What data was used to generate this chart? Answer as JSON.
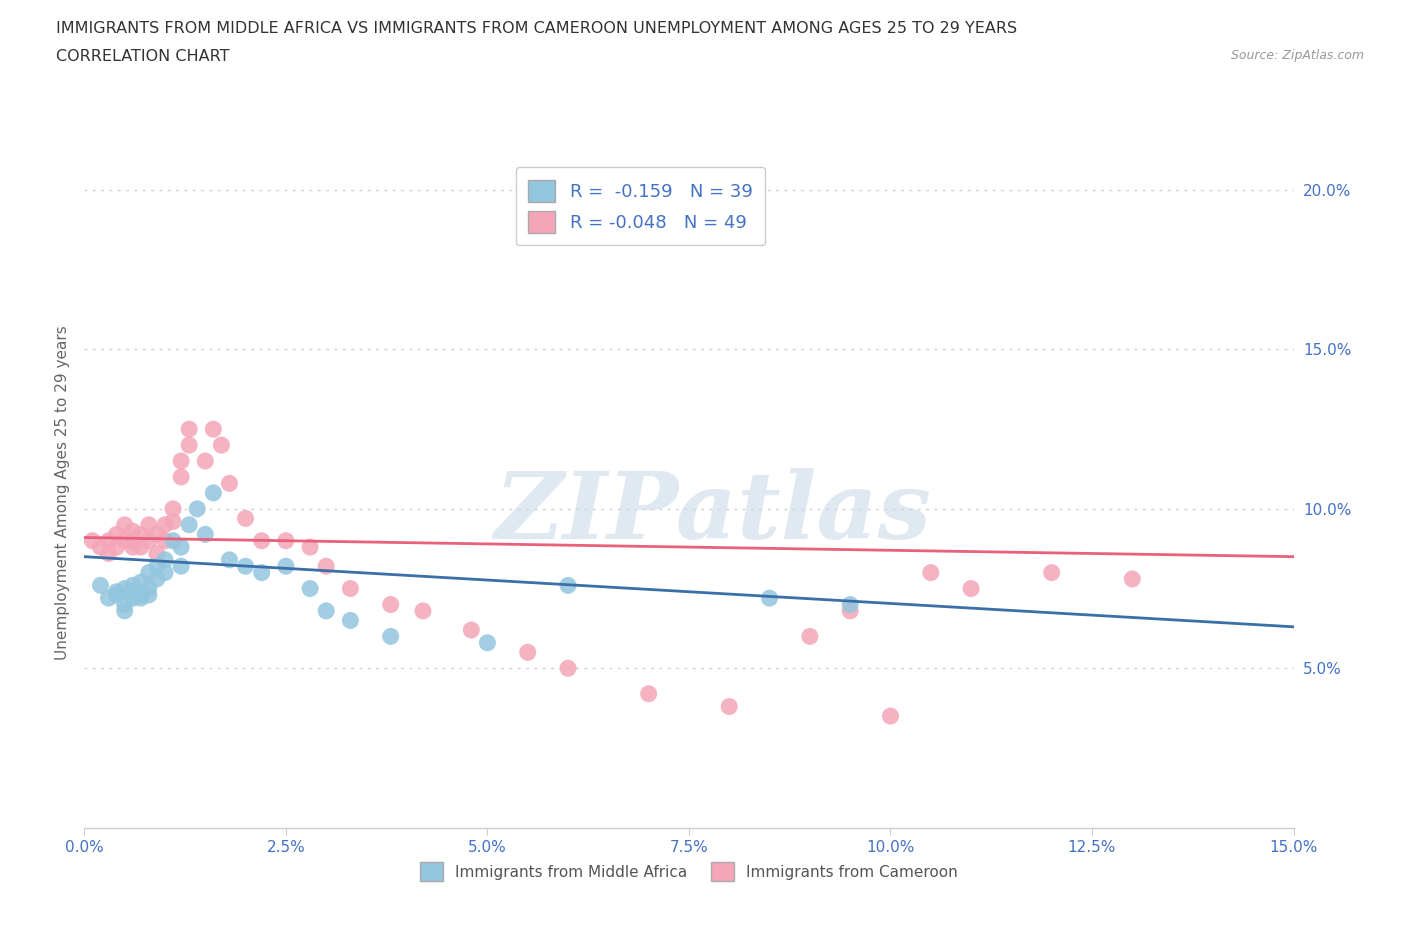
{
  "title_line1": "IMMIGRANTS FROM MIDDLE AFRICA VS IMMIGRANTS FROM CAMEROON UNEMPLOYMENT AMONG AGES 25 TO 29 YEARS",
  "title_line2": "CORRELATION CHART",
  "source_text": "Source: ZipAtlas.com",
  "ylabel": "Unemployment Among Ages 25 to 29 years",
  "xlim": [
    0.0,
    0.15
  ],
  "ylim": [
    0.0,
    0.21
  ],
  "xtick_vals": [
    0.0,
    0.025,
    0.05,
    0.075,
    0.1,
    0.125,
    0.15
  ],
  "ytick_vals": [
    0.05,
    0.1,
    0.15,
    0.2
  ],
  "blue_R": -0.159,
  "blue_N": 39,
  "pink_R": -0.048,
  "pink_N": 49,
  "blue_color": "#92c5de",
  "pink_color": "#f4a6b8",
  "blue_line_color": "#3b6fa8",
  "pink_line_color": "#e8607a",
  "legend_label_blue": "Immigrants from Middle Africa",
  "legend_label_pink": "Immigrants from Cameroon",
  "watermark_color": "#ccd9e8",
  "blue_scatter_x": [
    0.002,
    0.003,
    0.004,
    0.004,
    0.005,
    0.005,
    0.005,
    0.006,
    0.006,
    0.006,
    0.007,
    0.007,
    0.007,
    0.008,
    0.008,
    0.008,
    0.009,
    0.009,
    0.01,
    0.01,
    0.011,
    0.012,
    0.012,
    0.013,
    0.014,
    0.015,
    0.016,
    0.018,
    0.02,
    0.022,
    0.025,
    0.028,
    0.03,
    0.033,
    0.038,
    0.05,
    0.06,
    0.085,
    0.095
  ],
  "blue_scatter_y": [
    0.076,
    0.072,
    0.074,
    0.073,
    0.075,
    0.07,
    0.068,
    0.076,
    0.074,
    0.072,
    0.077,
    0.073,
    0.072,
    0.08,
    0.075,
    0.073,
    0.082,
    0.078,
    0.084,
    0.08,
    0.09,
    0.088,
    0.082,
    0.095,
    0.1,
    0.092,
    0.105,
    0.084,
    0.082,
    0.08,
    0.082,
    0.075,
    0.068,
    0.065,
    0.06,
    0.058,
    0.076,
    0.072,
    0.07
  ],
  "pink_scatter_x": [
    0.001,
    0.002,
    0.003,
    0.003,
    0.004,
    0.004,
    0.005,
    0.005,
    0.006,
    0.006,
    0.006,
    0.007,
    0.007,
    0.008,
    0.008,
    0.009,
    0.009,
    0.01,
    0.01,
    0.011,
    0.011,
    0.012,
    0.012,
    0.013,
    0.013,
    0.015,
    0.016,
    0.017,
    0.018,
    0.02,
    0.022,
    0.025,
    0.028,
    0.03,
    0.033,
    0.038,
    0.042,
    0.048,
    0.055,
    0.06,
    0.07,
    0.08,
    0.09,
    0.095,
    0.1,
    0.105,
    0.11,
    0.12,
    0.13
  ],
  "pink_scatter_y": [
    0.09,
    0.088,
    0.09,
    0.086,
    0.092,
    0.088,
    0.095,
    0.09,
    0.093,
    0.088,
    0.09,
    0.092,
    0.088,
    0.095,
    0.09,
    0.092,
    0.086,
    0.095,
    0.09,
    0.1,
    0.096,
    0.115,
    0.11,
    0.125,
    0.12,
    0.115,
    0.125,
    0.12,
    0.108,
    0.097,
    0.09,
    0.09,
    0.088,
    0.082,
    0.075,
    0.07,
    0.068,
    0.062,
    0.055,
    0.05,
    0.042,
    0.038,
    0.06,
    0.068,
    0.035,
    0.08,
    0.075,
    0.08,
    0.078
  ],
  "grid_color": "#d0d0d0",
  "background_color": "#ffffff",
  "tick_color": "#4472c4",
  "ylabel_color": "#666666"
}
